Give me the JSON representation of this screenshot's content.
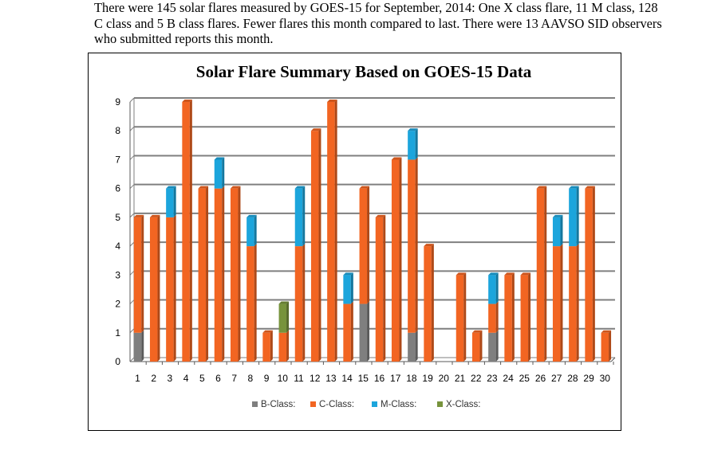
{
  "intro_text": "There were 145 solar flares measured by GOES-15 for  September, 2014: One X class flare, 11 M class, 128 C class and 5 B class flares. Fewer flares this month compared to last. There were 13 AAVSO SID observers who submitted reports this month.",
  "colors": {
    "B": "#7f7f7f",
    "C": "#f26522",
    "M": "#1ca5dc",
    "X": "#77933c",
    "grid": "#7f7f7f"
  },
  "chart_data": {
    "type": "bar",
    "stacked": true,
    "title": "Solar Flare Summary Based on GOES-15 Data",
    "xlabel": "",
    "ylabel": "",
    "ylim": [
      0,
      9
    ],
    "yticks": [
      0,
      1,
      2,
      3,
      4,
      5,
      6,
      7,
      8,
      9
    ],
    "grid": true,
    "legend_position": "bottom",
    "categories": [
      "1",
      "2",
      "3",
      "4",
      "5",
      "6",
      "7",
      "8",
      "9",
      "10",
      "11",
      "12",
      "13",
      "14",
      "15",
      "16",
      "17",
      "18",
      "19",
      "20",
      "21",
      "22",
      "23",
      "24",
      "25",
      "26",
      "27",
      "28",
      "29",
      "30"
    ],
    "series": [
      {
        "key": "B",
        "name": "B-Class:",
        "values": [
          1,
          0,
          0,
          0,
          0,
          0,
          0,
          0,
          0,
          0,
          0,
          0,
          0,
          0,
          2,
          0,
          0,
          1,
          0,
          0,
          0,
          0,
          1,
          0,
          0,
          0,
          0,
          0,
          0,
          0
        ]
      },
      {
        "key": "C",
        "name": "C-Class:",
        "values": [
          4,
          5,
          5,
          9,
          6,
          6,
          6,
          4,
          1,
          1,
          4,
          8,
          9,
          2,
          4,
          5,
          7,
          6,
          4,
          0,
          3,
          1,
          1,
          3,
          3,
          6,
          4,
          4,
          6,
          1
        ]
      },
      {
        "key": "M",
        "name": "M-Class:",
        "values": [
          0,
          0,
          1,
          0,
          0,
          1,
          0,
          1,
          0,
          0,
          2,
          0,
          0,
          1,
          0,
          0,
          0,
          1,
          0,
          0,
          0,
          0,
          1,
          0,
          0,
          0,
          1,
          2,
          0,
          0
        ]
      },
      {
        "key": "X",
        "name": "X-Class:",
        "values": [
          0,
          0,
          0,
          0,
          0,
          0,
          0,
          0,
          0,
          1,
          0,
          0,
          0,
          0,
          0,
          0,
          0,
          0,
          0,
          0,
          0,
          0,
          0,
          0,
          0,
          0,
          0,
          0,
          0,
          0
        ]
      }
    ]
  }
}
